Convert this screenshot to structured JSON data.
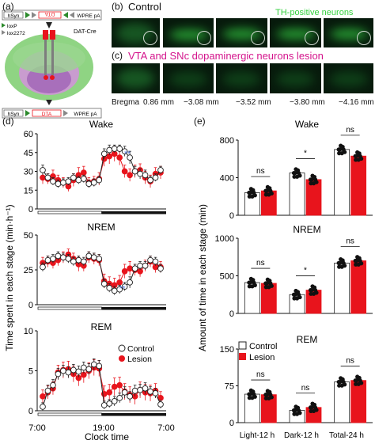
{
  "panel_a": {
    "label": "(a)",
    "construct_top": {
      "promoter": "hSyn",
      "gene": "DTA",
      "tail": "WPRE pA"
    },
    "construct_bottom": {
      "promoter": "hSyn",
      "gene": "DTA",
      "tail": "WPRE pA"
    },
    "legend": [
      "loxP",
      "lox2272"
    ],
    "mouse_line": "DAT-Cre"
  },
  "panel_b": {
    "label": "(b)",
    "title": "Control",
    "stain": "TH-positive neurons"
  },
  "panel_c": {
    "label": "(c)",
    "title": "VTA and SNc dopaminergic neurons lesion"
  },
  "bregma": {
    "label": "Bregma",
    "values": [
      "0.86 mm",
      "−3.08 mm",
      "−3.52 mm",
      "−3.80 mm",
      "−4.16 mm"
    ]
  },
  "panel_d": {
    "label": "(d)",
    "ylabel": "Time spent in each stage  (min·h⁻¹)",
    "xlabel": "Clock time",
    "xticks": [
      "7:00",
      "19:00",
      "7:00"
    ],
    "legend": [
      "Control",
      "Lesion"
    ],
    "sig": "**"
  },
  "panel_e": {
    "label": "(e)",
    "ylabel": "Amount of time in  each stage  (min)",
    "categories": [
      "Light-12 h",
      "Dark-12 h",
      "Total-24 h"
    ],
    "legend": [
      "Control",
      "Lesion"
    ]
  },
  "colors": {
    "control": "#ffffff",
    "lesion": "#e8141c",
    "stain": "#36d140",
    "lesion_title": "#d4148c"
  },
  "chart_data": [
    {
      "type": "line",
      "title": "Wake",
      "ylim": [
        0,
        60
      ],
      "yticks": [
        0,
        15,
        30,
        45,
        60
      ],
      "x": [
        1,
        2,
        3,
        4,
        5,
        6,
        7,
        8,
        9,
        10,
        11,
        12,
        13,
        14,
        15,
        16,
        17,
        18,
        19,
        20,
        21,
        22,
        23,
        24
      ],
      "series": [
        {
          "name": "Control",
          "values": [
            31,
            25,
            22,
            20,
            21,
            22,
            25,
            23,
            24,
            20,
            21,
            23,
            44,
            47,
            48,
            48,
            46,
            41,
            30,
            28,
            27,
            23,
            25,
            31
          ],
          "err": [
            4,
            3,
            3,
            3,
            3,
            3,
            3,
            3,
            3,
            3,
            3,
            3,
            4,
            4,
            3,
            3,
            4,
            5,
            4,
            4,
            4,
            3,
            3,
            3
          ]
        },
        {
          "name": "Lesion",
          "values": [
            25,
            24,
            26,
            23,
            21,
            18,
            23,
            27,
            29,
            21,
            22,
            24,
            40,
            42,
            44,
            41,
            30,
            27,
            30,
            31,
            25,
            22,
            28,
            29
          ],
          "err": [
            5,
            4,
            5,
            4,
            4,
            4,
            5,
            6,
            5,
            4,
            4,
            5,
            6,
            6,
            6,
            6,
            5,
            5,
            5,
            5,
            5,
            5,
            5,
            5
          ]
        }
      ],
      "annotations": [
        {
          "text": "**",
          "x": 16
        }
      ]
    },
    {
      "type": "line",
      "title": "NREM",
      "ylim": [
        0,
        50
      ],
      "yticks": [
        0,
        25,
        50
      ],
      "x": [
        1,
        2,
        3,
        4,
        5,
        6,
        7,
        8,
        9,
        10,
        11,
        12,
        13,
        14,
        15,
        16,
        17,
        18,
        19,
        20,
        21,
        22,
        23,
        24
      ],
      "series": [
        {
          "name": "Control",
          "values": [
            27,
            32,
            33,
            35,
            34,
            33,
            31,
            32,
            31,
            35,
            34,
            33,
            15,
            12,
            10,
            11,
            13,
            16,
            26,
            28,
            28,
            32,
            31,
            26
          ],
          "err": [
            3,
            3,
            3,
            3,
            3,
            3,
            3,
            3,
            3,
            3,
            3,
            3,
            3,
            3,
            3,
            3,
            3,
            4,
            3,
            3,
            3,
            3,
            3,
            3
          ]
        },
        {
          "name": "Lesion",
          "values": [
            30,
            31,
            30,
            32,
            34,
            36,
            33,
            29,
            28,
            34,
            33,
            32,
            17,
            15,
            14,
            16,
            24,
            26,
            25,
            24,
            28,
            31,
            27,
            27
          ],
          "err": [
            4,
            4,
            4,
            4,
            4,
            4,
            4,
            5,
            4,
            4,
            4,
            4,
            5,
            5,
            5,
            5,
            5,
            5,
            4,
            4,
            4,
            4,
            4,
            4
          ]
        }
      ],
      "annotations": [
        {
          "text": "**",
          "x": 15
        }
      ]
    },
    {
      "type": "line",
      "title": "REM",
      "ylim": [
        0,
        10
      ],
      "yticks": [
        0,
        5,
        10
      ],
      "x": [
        1,
        2,
        3,
        4,
        5,
        6,
        7,
        8,
        9,
        10,
        11,
        12,
        13,
        14,
        15,
        16,
        17,
        18,
        19,
        20,
        21,
        22,
        23,
        24
      ],
      "series": [
        {
          "name": "Control",
          "values": [
            0.5,
            2.5,
            3.2,
            4.6,
            5.0,
            4.8,
            5.1,
            4.9,
            5.4,
            5.2,
            5.8,
            5.6,
            0.7,
            0.9,
            1.2,
            1.6,
            2.3,
            1.8,
            2.5,
            2.6,
            2.8,
            2.4,
            2.2,
            0.8
          ],
          "err": [
            0.5,
            0.7,
            0.7,
            0.7,
            0.7,
            0.7,
            0.7,
            0.7,
            0.7,
            0.7,
            0.7,
            0.7,
            0.5,
            0.5,
            0.6,
            0.6,
            0.7,
            0.6,
            0.7,
            0.7,
            0.7,
            0.6,
            0.6,
            0.5
          ]
        },
        {
          "name": "Lesion",
          "values": [
            1.8,
            2.3,
            2.8,
            4.8,
            5.1,
            5.2,
            4.6,
            4.1,
            4.5,
            5.0,
            5.4,
            5.3,
            2.1,
            2.3,
            3.0,
            3.2,
            2.4,
            2.0,
            1.8,
            2.6,
            2.3,
            2.2,
            2.5,
            1.6
          ],
          "err": [
            0.8,
            0.8,
            0.8,
            0.9,
            1.0,
            1.0,
            1.0,
            1.0,
            1.0,
            1.0,
            1.0,
            1.0,
            1.0,
            1.0,
            1.1,
            1.0,
            1.0,
            1.0,
            1.0,
            1.0,
            1.0,
            1.0,
            0.9,
            0.8
          ]
        }
      ]
    },
    {
      "type": "bar",
      "title": "Wake",
      "categories": [
        "Light-12 h",
        "Dark-12 h",
        "Total-24 h"
      ],
      "ylim": [
        0,
        800
      ],
      "yticks": [
        0,
        400,
        800
      ],
      "series": [
        {
          "name": "Control",
          "values": [
            240,
            450,
            700
          ]
        },
        {
          "name": "Lesion",
          "values": [
            260,
            380,
            630
          ]
        }
      ],
      "sig": [
        "ns",
        "*",
        "ns"
      ]
    },
    {
      "type": "bar",
      "title": "NREM",
      "categories": [
        "Light-12 h",
        "Dark-12 h",
        "Total-24 h"
      ],
      "ylim": [
        0,
        1000
      ],
      "yticks": [
        0,
        500,
        1000
      ],
      "series": [
        {
          "name": "Control",
          "values": [
            410,
            250,
            670
          ]
        },
        {
          "name": "Lesion",
          "values": [
            400,
            310,
            700
          ]
        }
      ],
      "sig": [
        "ns",
        "*",
        "ns"
      ]
    },
    {
      "type": "bar",
      "title": "REM",
      "categories": [
        "Light-12 h",
        "Dark-12 h",
        "Total-24 h"
      ],
      "ylim": [
        0,
        150
      ],
      "yticks": [
        0,
        75,
        150
      ],
      "series": [
        {
          "name": "Control",
          "values": [
            58,
            25,
            83
          ]
        },
        {
          "name": "Lesion",
          "values": [
            57,
            31,
            86
          ]
        }
      ],
      "sig": [
        "ns",
        "ns",
        "ns"
      ]
    }
  ]
}
